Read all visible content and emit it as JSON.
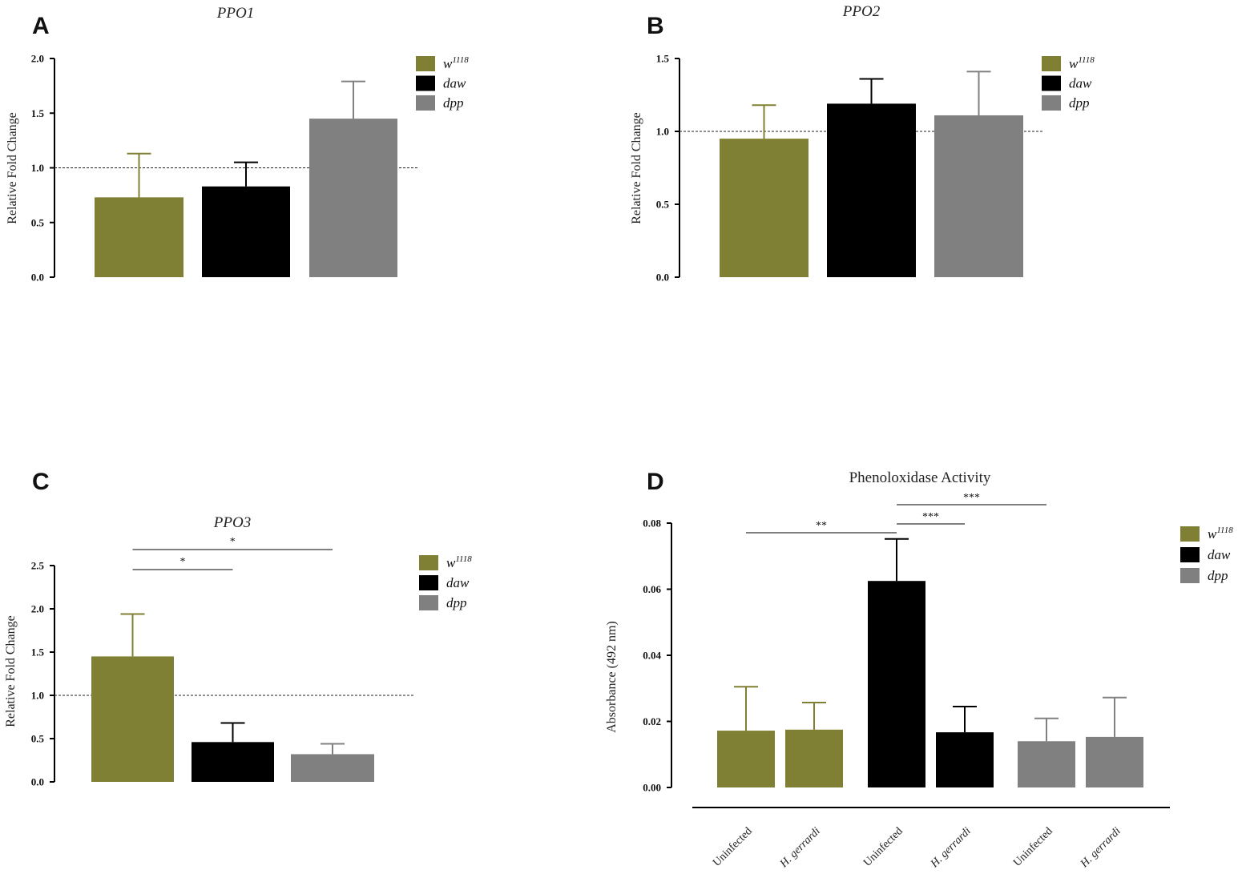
{
  "colors": {
    "w1118": "#808034",
    "daw": "#000000",
    "dpp": "#808080",
    "axis": "#000000"
  },
  "chart_data": [
    {
      "panel": "A",
      "type": "bar",
      "title": "PPO1",
      "ylabel": "Relative Fold Change",
      "ylim": [
        0,
        2.0
      ],
      "yticks": [
        "0.0",
        "0.5",
        "1.0",
        "1.5",
        "2.0"
      ],
      "reference_line": 1.0,
      "legend": [
        {
          "base": "w",
          "sup": "1118"
        },
        {
          "base": "daw",
          "sup": ""
        },
        {
          "base": "dpp",
          "sup": ""
        }
      ],
      "bars": [
        {
          "group": "w1118",
          "value": 0.73,
          "error": 0.4
        },
        {
          "group": "daw",
          "value": 0.83,
          "error": 0.22
        },
        {
          "group": "dpp",
          "value": 1.45,
          "error": 0.34
        }
      ]
    },
    {
      "panel": "B",
      "type": "bar",
      "title": "PPO2",
      "ylabel": "Relative Fold Change",
      "ylim": [
        0,
        1.5
      ],
      "yticks": [
        "0.0",
        "0.5",
        "1.0",
        "1.5"
      ],
      "reference_line": 1.0,
      "legend": [
        {
          "base": "w",
          "sup": "1118"
        },
        {
          "base": "daw",
          "sup": ""
        },
        {
          "base": "dpp",
          "sup": ""
        }
      ],
      "bars": [
        {
          "group": "w1118",
          "value": 0.95,
          "error": 0.23
        },
        {
          "group": "daw",
          "value": 1.19,
          "error": 0.17
        },
        {
          "group": "dpp",
          "value": 1.11,
          "error": 0.3
        }
      ]
    },
    {
      "panel": "C",
      "type": "bar",
      "title": "PPO3",
      "ylabel": "Relative Fold Change",
      "ylim": [
        0,
        2.5
      ],
      "yticks": [
        "0.0",
        "0.5",
        "1.0",
        "1.5",
        "2.0",
        "2.5"
      ],
      "reference_line": 1.0,
      "legend": [
        {
          "base": "w",
          "sup": "1118"
        },
        {
          "base": "daw",
          "sup": ""
        },
        {
          "base": "dpp",
          "sup": ""
        }
      ],
      "bars": [
        {
          "group": "w1118",
          "value": 1.45,
          "error": 0.49
        },
        {
          "group": "daw",
          "value": 0.46,
          "error": 0.22
        },
        {
          "group": "dpp",
          "value": 0.32,
          "error": 0.12
        }
      ],
      "significance": [
        {
          "from": 0,
          "to": 1,
          "label": "*"
        },
        {
          "from": 0,
          "to": 2,
          "label": "*"
        }
      ]
    },
    {
      "panel": "D",
      "type": "bar",
      "title": "Phenoloxidase Activity",
      "ylabel": "Absorbance (492 nm)",
      "ylim": [
        0,
        0.08
      ],
      "yticks": [
        "0.00",
        "0.02",
        "0.04",
        "0.06",
        "0.08"
      ],
      "legend": [
        {
          "base": "w",
          "sup": "1118"
        },
        {
          "base": "daw",
          "sup": ""
        },
        {
          "base": "dpp",
          "sup": ""
        }
      ],
      "bars": [
        {
          "group": "w1118",
          "category": "Uninfected",
          "value": 0.0172,
          "error": 0.0133
        },
        {
          "group": "w1118",
          "category": "H. gerrardi",
          "value": 0.0175,
          "error": 0.0082
        },
        {
          "group": "daw",
          "category": "Uninfected",
          "value": 0.0625,
          "error": 0.0127
        },
        {
          "group": "daw",
          "category": "H. gerrardi",
          "value": 0.0167,
          "error": 0.0078
        },
        {
          "group": "dpp",
          "category": "Uninfected",
          "value": 0.014,
          "error": 0.0069
        },
        {
          "group": "dpp",
          "category": "H. gerrardi",
          "value": 0.0153,
          "error": 0.0119
        }
      ],
      "significance": [
        {
          "from": 0,
          "to": 2,
          "label": "**"
        },
        {
          "from": 2,
          "to": 3,
          "label": "***"
        },
        {
          "from": 2,
          "to": 4,
          "label": "***"
        }
      ]
    }
  ]
}
